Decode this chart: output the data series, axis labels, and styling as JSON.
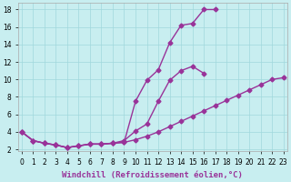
{
  "background_color": "#c8eef0",
  "grid_color": "#a0d8dc",
  "line_color": "#993399",
  "xlim_min": -0.3,
  "xlim_max": 23.3,
  "ylim_min": 1.8,
  "ylim_max": 18.8,
  "xticks": [
    0,
    1,
    2,
    3,
    4,
    5,
    6,
    7,
    8,
    9,
    10,
    11,
    12,
    13,
    14,
    15,
    16,
    17,
    18,
    19,
    20,
    21,
    22,
    23
  ],
  "yticks": [
    2,
    4,
    6,
    8,
    10,
    12,
    14,
    16,
    18
  ],
  "xlabel": "Windchill (Refroidissement éolien,°C)",
  "tick_fontsize": 5.5,
  "xlabel_fontsize": 6.5,
  "lw": 1.0,
  "ms": 2.5,
  "line1_x": [
    0,
    1,
    2,
    3,
    4,
    5,
    6,
    7,
    8,
    9,
    10,
    11,
    12,
    13,
    14,
    15,
    16,
    17
  ],
  "line1_y": [
    4.0,
    3.0,
    2.7,
    2.5,
    2.2,
    2.4,
    2.6,
    2.6,
    2.7,
    2.8,
    7.5,
    9.9,
    11.1,
    14.2,
    16.2,
    16.4,
    18.0,
    18.0
  ],
  "line2_x": [
    0,
    1,
    2,
    3,
    4,
    5,
    6,
    7,
    8,
    9,
    10,
    11,
    12,
    13,
    14,
    15,
    16
  ],
  "line2_y": [
    4.0,
    3.0,
    2.7,
    2.5,
    2.2,
    2.4,
    2.6,
    2.6,
    2.7,
    3.0,
    4.1,
    4.9,
    7.5,
    9.9,
    11.0,
    11.5,
    10.7
  ],
  "line3_x": [
    0,
    1,
    2,
    3,
    4,
    5,
    6,
    7,
    8,
    9,
    10,
    11,
    12,
    13,
    14,
    15,
    16,
    17,
    18,
    19,
    20,
    21,
    22,
    23
  ],
  "line3_y": [
    4.0,
    3.0,
    2.7,
    2.5,
    2.2,
    2.4,
    2.6,
    2.6,
    2.7,
    2.8,
    3.1,
    3.5,
    4.0,
    4.6,
    5.2,
    5.8,
    6.4,
    7.0,
    7.6,
    8.2,
    8.8,
    9.4,
    10.0,
    10.2
  ]
}
